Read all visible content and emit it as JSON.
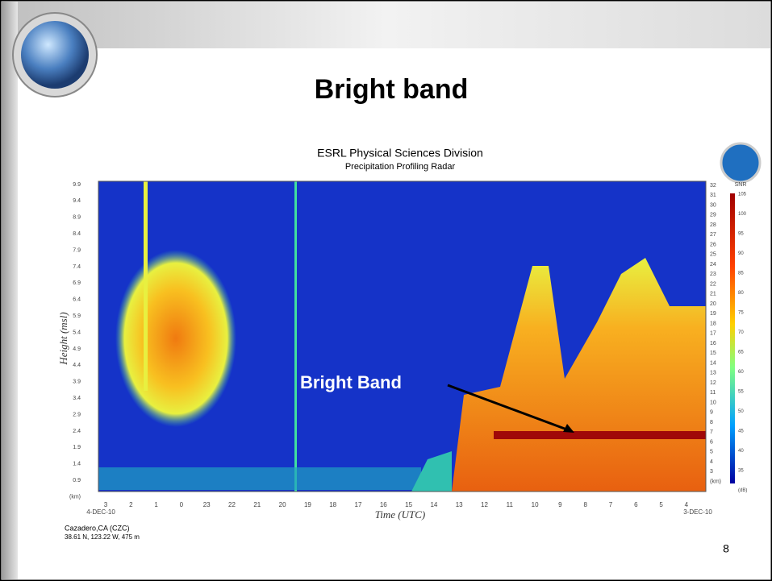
{
  "slide": {
    "title": "Bright band",
    "figure": {
      "title": "ESRL Physical Sciences Division",
      "subtitle": "Precipitation Profiling Radar",
      "y_label": "Height (msl)",
      "x_label": "Time (UTC)",
      "y_ticks": [
        "9.9",
        "9.4",
        "8.9",
        "8.4",
        "7.9",
        "7.4",
        "6.9",
        "6.4",
        "5.9",
        "5.4",
        "4.9",
        "4.4",
        "3.9",
        "3.4",
        "2.9",
        "2.4",
        "1.9",
        "1.4",
        "0.9",
        "(km)"
      ],
      "gate_ticks": [
        "32",
        "31",
        "30",
        "29",
        "28",
        "27",
        "26",
        "25",
        "24",
        "23",
        "22",
        "21",
        "20",
        "19",
        "18",
        "17",
        "16",
        "15",
        "14",
        "13",
        "12",
        "11",
        "10",
        "9",
        "8",
        "7",
        "6",
        "5",
        "4",
        "3",
        "(km)"
      ],
      "snr_label": "SNR",
      "snr_ticks": [
        "105",
        "100",
        "95",
        "90",
        "85",
        "80",
        "75",
        "70",
        "65",
        "60",
        "55",
        "50",
        "45",
        "40",
        "35",
        "(dB)"
      ],
      "x_ticks": [
        "3",
        "2",
        "1",
        "0",
        "23",
        "22",
        "21",
        "20",
        "19",
        "18",
        "17",
        "16",
        "15",
        "14",
        "13",
        "12",
        "11",
        "10",
        "9",
        "8",
        "7",
        "6",
        "5",
        "4"
      ],
      "start_date": "4-DEC-10",
      "end_date": "3-DEC-10",
      "annotation": "Bright Band",
      "site": "Cazadero,CA (CZC)",
      "site_coords": "38.61 N, 123.22 W, 475 m"
    },
    "page_number": "8"
  }
}
